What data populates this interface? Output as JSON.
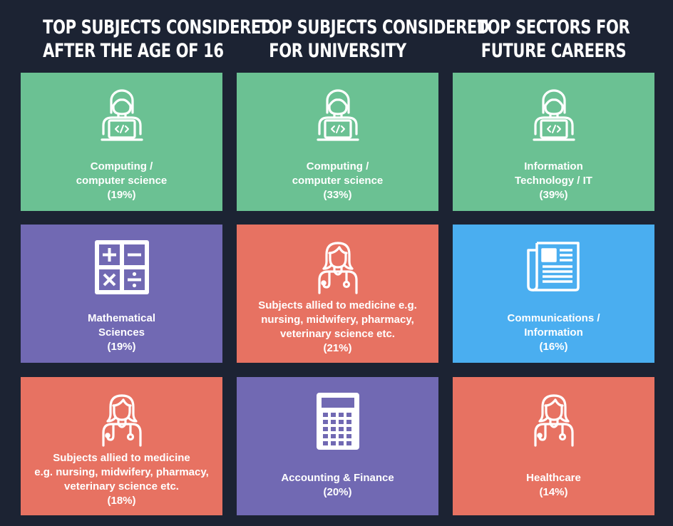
{
  "colors": {
    "background": "#1c2333",
    "green": "#6bc193",
    "purple": "#7169b3",
    "coral": "#e77262",
    "blue": "#4aaef0",
    "text": "#ffffff"
  },
  "columns": [
    {
      "title": [
        "TOP SUBJECTS CONSIDERED",
        "AFTER THE AGE OF 16"
      ],
      "tiles": [
        {
          "icon": "coder-icon",
          "color": "green",
          "lines": [
            "Computing /",
            "computer science"
          ],
          "percent": "(19%)"
        },
        {
          "icon": "math-symbols-icon",
          "color": "purple",
          "lines": [
            "Mathematical",
            "Sciences"
          ],
          "percent": "(19%)"
        },
        {
          "icon": "doctor-icon",
          "color": "coral",
          "lines": [
            "Subjects allied to medicine",
            "e.g. nursing, midwifery, pharmacy,",
            "veterinary science etc."
          ],
          "percent": "(18%)"
        }
      ]
    },
    {
      "title": [
        "TOP SUBJECTS CONSIDERED",
        "FOR UNIVERSITY"
      ],
      "tiles": [
        {
          "icon": "coder-icon",
          "color": "green",
          "lines": [
            "Computing /",
            "computer science"
          ],
          "percent": "(33%)"
        },
        {
          "icon": "doctor-icon",
          "color": "coral",
          "lines": [
            "Subjects allied to medicine e.g.",
            "nursing, midwifery, pharmacy,",
            "veterinary science etc."
          ],
          "percent": "(21%)"
        },
        {
          "icon": "calculator-icon",
          "color": "purple",
          "lines": [
            "Accounting & Finance"
          ],
          "percent": "(20%)"
        }
      ]
    },
    {
      "title": [
        "TOP SECTORS FOR",
        "FUTURE CAREERS"
      ],
      "tiles": [
        {
          "icon": "coder-icon",
          "color": "green",
          "lines": [
            "Information",
            "Technology / IT"
          ],
          "percent": "(39%)"
        },
        {
          "icon": "newspaper-icon",
          "color": "blue",
          "lines": [
            "Communications /",
            "Information"
          ],
          "percent": "(16%)"
        },
        {
          "icon": "doctor-icon",
          "color": "coral",
          "lines": [
            "Healthcare"
          ],
          "percent": "(14%)"
        }
      ]
    }
  ]
}
